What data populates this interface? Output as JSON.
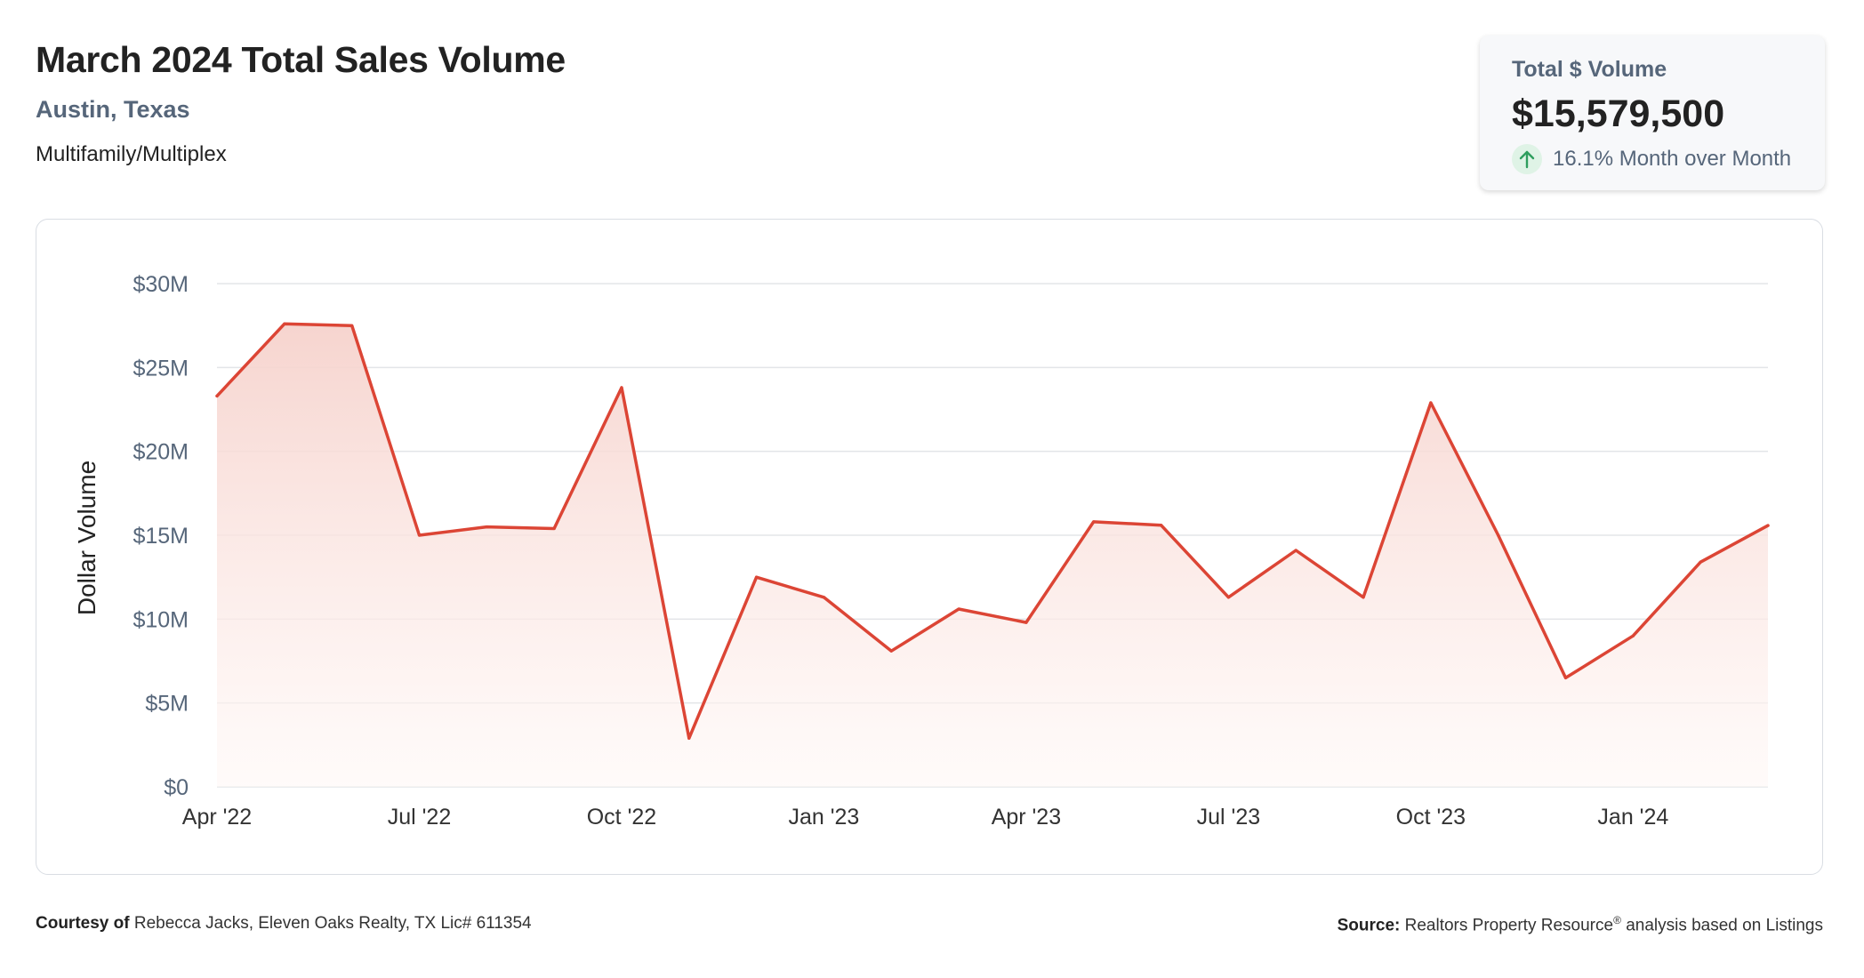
{
  "header": {
    "title": "March 2024 Total Sales Volume",
    "location": "Austin, Texas",
    "property_type": "Multifamily/Multiplex"
  },
  "summary_card": {
    "label": "Total $ Volume",
    "value": "$15,579,500",
    "change_text": "16.1% Month over Month",
    "change_direction": "up",
    "change_icon": "arrow-up-icon"
  },
  "footer": {
    "courtesy_label": "Courtesy of",
    "courtesy_text": "Rebecca Jacks, Eleven Oaks Realty, TX Lic# 611354",
    "source_label": "Source:",
    "source_text_before": "Realtors Property Resource",
    "source_sup": "®",
    "source_text_after": "analysis based on Listings"
  },
  "colors": {
    "line": "#dc4535",
    "fill_top": "#f6d2cc",
    "fill_bottom": "#fff8f6",
    "grid": "#e3e5e8",
    "axis_text": "#56667a",
    "arrow_green": "#2e9e5e"
  },
  "chart_data": {
    "type": "area",
    "ylabel": "Dollar Volume",
    "xlabel": "",
    "ylim": [
      0,
      30000000
    ],
    "yticks": [
      0,
      5000000,
      10000000,
      15000000,
      20000000,
      25000000,
      30000000
    ],
    "ytick_labels": [
      "$0",
      "$5M",
      "$10M",
      "$15M",
      "$20M",
      "$25M",
      "$30M"
    ],
    "x": [
      "2022-04",
      "2022-05",
      "2022-06",
      "2022-07",
      "2022-08",
      "2022-09",
      "2022-10",
      "2022-11",
      "2022-12",
      "2023-01",
      "2023-02",
      "2023-03",
      "2023-04",
      "2023-05",
      "2023-06",
      "2023-07",
      "2023-08",
      "2023-09",
      "2023-10",
      "2023-11",
      "2023-12",
      "2024-01",
      "2024-02",
      "2024-03"
    ],
    "xtick_indices": [
      0,
      3,
      6,
      9,
      12,
      15,
      18,
      21
    ],
    "xtick_labels": [
      "Apr '22",
      "Jul '22",
      "Oct '22",
      "Jan '23",
      "Apr '23",
      "Jul '23",
      "Oct '23",
      "Jan '24"
    ],
    "series": [
      {
        "values": [
          23300000,
          27600000,
          27500000,
          15000000,
          15500000,
          15400000,
          23800000,
          2900000,
          12500000,
          11300000,
          8100000,
          10600000,
          9800000,
          15800000,
          15600000,
          11300000,
          14100000,
          11300000,
          22900000,
          15000000,
          6500000,
          9000000,
          13400000,
          15579500
        ]
      }
    ],
    "grid": true,
    "legend": "none"
  }
}
